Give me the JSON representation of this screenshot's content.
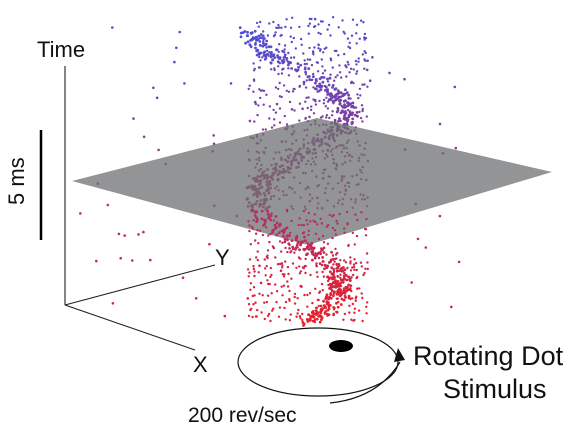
{
  "labels": {
    "time_axis": "Time",
    "y_axis": "Y",
    "x_axis": "X",
    "scale_bar": "5 ms",
    "stimulus_line1": "Rotating Dot",
    "stimulus_line2": "Stimulus",
    "rotation_rate": "200 rev/sec"
  },
  "colors": {
    "early": "#e8202a",
    "late": "#4c4fd6",
    "plane": "#6f7072",
    "dot": "#000000"
  }
}
